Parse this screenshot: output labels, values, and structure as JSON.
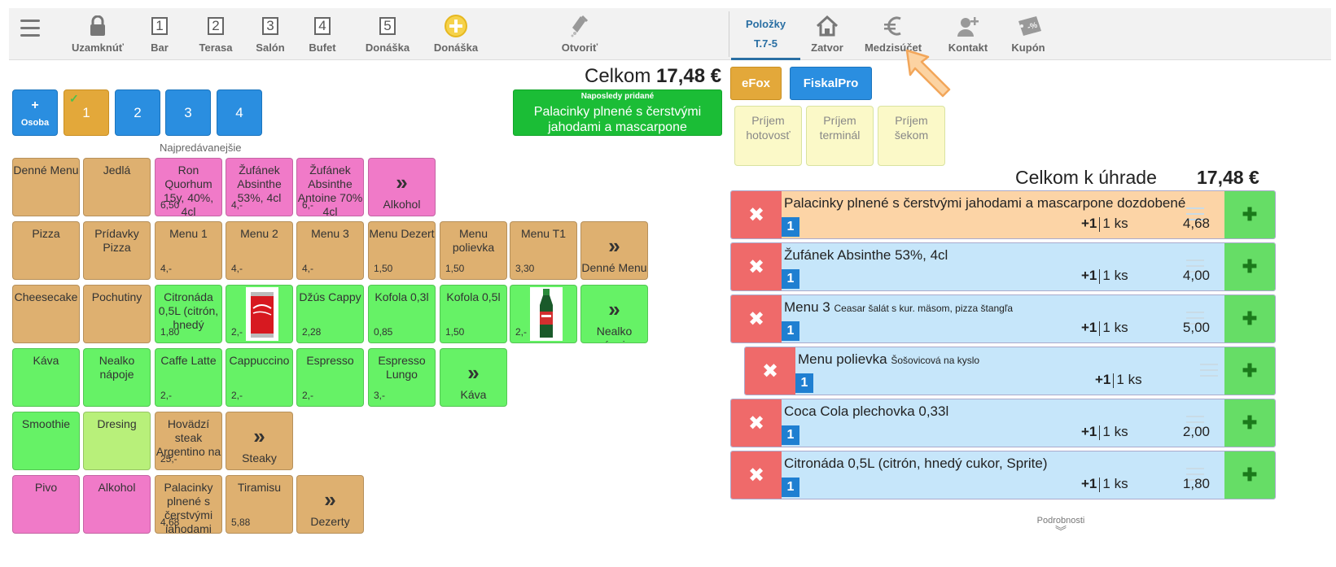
{
  "topbar": {
    "items": [
      {
        "label": "Uzamknúť",
        "icon": "lock-icon"
      },
      {
        "label": "Bar",
        "icon": "1"
      },
      {
        "label": "Terasa",
        "icon": "2"
      },
      {
        "label": "Salón",
        "icon": "3"
      },
      {
        "label": "Bufet",
        "icon": "4"
      },
      {
        "label": "Donáška",
        "icon": "5"
      },
      {
        "label": "Donáška",
        "icon": "plus-circle-icon"
      },
      {
        "label": "Otvoriť",
        "icon": "bottle-icon"
      }
    ],
    "active_tab": {
      "line1": "Položky",
      "line2": "T.7-5"
    },
    "right_items": [
      {
        "label": "Zatvor",
        "icon": "house-icon"
      },
      {
        "label": "Medzisúčet",
        "icon": "euro-icon"
      },
      {
        "label": "Kontakt",
        "icon": "add-user-icon"
      },
      {
        "label": "Kupón",
        "icon": "coupon-icon"
      }
    ]
  },
  "persons": {
    "add_label": "Osoba",
    "add_plus": "+",
    "seats": [
      "1",
      "2",
      "3",
      "4"
    ],
    "selected": "1"
  },
  "section_label": "Najpredávanejšie",
  "grid": {
    "row1": [
      {
        "name": "Denné Menu",
        "price": ""
      },
      {
        "name": "Jedlá",
        "price": ""
      },
      {
        "name": "Ron Quorhum 15y, 40%, 4cl",
        "price": "6,50"
      },
      {
        "name": "Žufánek Absinthe 53%, 4cl",
        "price": "4,-"
      },
      {
        "name": "Žufánek Absinthe Antoine 70% 4cl",
        "price": "6,-"
      },
      {
        "name": "Alkohol",
        "more": true
      }
    ],
    "row2": [
      {
        "name": "Pizza",
        "price": ""
      },
      {
        "name": "Prídavky Pizza",
        "price": ""
      },
      {
        "name": "Menu 1",
        "price": "4,-"
      },
      {
        "name": "Menu 2",
        "price": "4,-"
      },
      {
        "name": "Menu 3",
        "price": "4,-"
      },
      {
        "name": "Menu Dezert",
        "price": "1,50"
      },
      {
        "name": "Menu polievka",
        "price": "1,50"
      },
      {
        "name": "Menu T1",
        "price": "3,30"
      },
      {
        "name": "Denné Menu",
        "more": true
      }
    ],
    "row3": [
      {
        "name": "Cheesecake",
        "price": ""
      },
      {
        "name": "Pochutiny",
        "price": ""
      },
      {
        "name": "Citronáda 0,5L (citrón, hnedý",
        "price": "1,80"
      },
      {
        "name": "",
        "price": "2,-",
        "image": "coca-cola-can-image"
      },
      {
        "name": "Džús Cappy",
        "price": "2,28"
      },
      {
        "name": "Kofola 0,3l",
        "price": "0,85"
      },
      {
        "name": "Kofola 0,5l",
        "price": "1,50"
      },
      {
        "name": "",
        "price": "2,-",
        "image": "sprite-bottle-image"
      },
      {
        "name": "Nealko nápoje",
        "more": true
      }
    ],
    "row4": [
      {
        "name": "Káva",
        "price": ""
      },
      {
        "name": "Nealko nápoje",
        "price": ""
      },
      {
        "name": "Caffe Latte",
        "price": "2,-"
      },
      {
        "name": "Cappuccino",
        "price": "2,-"
      },
      {
        "name": "Espresso",
        "price": "2,-"
      },
      {
        "name": "Espresso Lungo",
        "price": "3,-"
      },
      {
        "name": "Káva",
        "more": true
      }
    ],
    "row5": [
      {
        "name": "Smoothie",
        "price": ""
      },
      {
        "name": "Dresing",
        "price": ""
      },
      {
        "name": "Hovädzí steak Argentino na",
        "price": "25,-"
      },
      {
        "name": "Steaky",
        "more": true
      }
    ],
    "row6": [
      {
        "name": "Pivo",
        "price": ""
      },
      {
        "name": "Alkohol",
        "price": ""
      },
      {
        "name": "Palacinky plnené s čerstvými jahodami",
        "price": "4,68"
      },
      {
        "name": "Tiramisu",
        "price": "5,88"
      },
      {
        "name": "Dezerty",
        "more": true
      }
    ]
  },
  "totals": {
    "celkom_label": "Celkom",
    "celkom_value": "17,48 €",
    "due_label": "Celkom k úhrade",
    "due_value": "17,48 €"
  },
  "last_added": {
    "title": "Naposledy pridané",
    "name": "Palacinky plnené s čerstvými jahodami a mascarpone"
  },
  "payment": {
    "efox": "eFox",
    "fiskalpro": "FiskalPro",
    "prijem": [
      {
        "line1": "Príjem",
        "line2": "hotovosť"
      },
      {
        "line1": "Príjem",
        "line2": "terminál"
      },
      {
        "line1": "Príjem",
        "line2": "šekom"
      }
    ]
  },
  "order_items": [
    {
      "name": "Palacinky plnené s čerstvými jahodami a mascarpone dozdobené",
      "note": "",
      "seat": "1",
      "inc": "+1",
      "qty": "1 ks",
      "price": "4,68",
      "bg": "orange"
    },
    {
      "name": "Žufánek Absinthe 53%, 4cl",
      "note": "",
      "seat": "1",
      "inc": "+1",
      "qty": "1 ks",
      "price": "4,00",
      "bg": "blue"
    },
    {
      "name": "Menu 3",
      "note": "Ceasar šalát s kur. mäsom, pizza štangľa",
      "seat": "1",
      "inc": "+1",
      "qty": "1 ks",
      "price": "5,00",
      "bg": "blue"
    },
    {
      "name": "Menu polievka",
      "note": "Šošovicová na kyslo",
      "seat": "1",
      "inc": "+1",
      "qty": "1 ks",
      "price": "",
      "bg": "blue"
    },
    {
      "name": "Coca Cola plechovka 0,33l",
      "note": "",
      "seat": "1",
      "inc": "+1",
      "qty": "1 ks",
      "price": "2,00",
      "bg": "blue"
    },
    {
      "name": "Citronáda 0,5L (citrón, hnedý cukor, Sprite)",
      "note": "",
      "seat": "1",
      "inc": "+1",
      "qty": "1 ks",
      "price": "1,80",
      "bg": "blue"
    }
  ],
  "details_label": "Podrobnosti",
  "colors": {
    "blue": "#2a8ee0",
    "orange": "#e3a83a",
    "tan": "#deb070",
    "pink": "#f07ac8",
    "green": "#66f266",
    "delete_red": "#ef6a6a",
    "add_green": "#66dd66"
  }
}
